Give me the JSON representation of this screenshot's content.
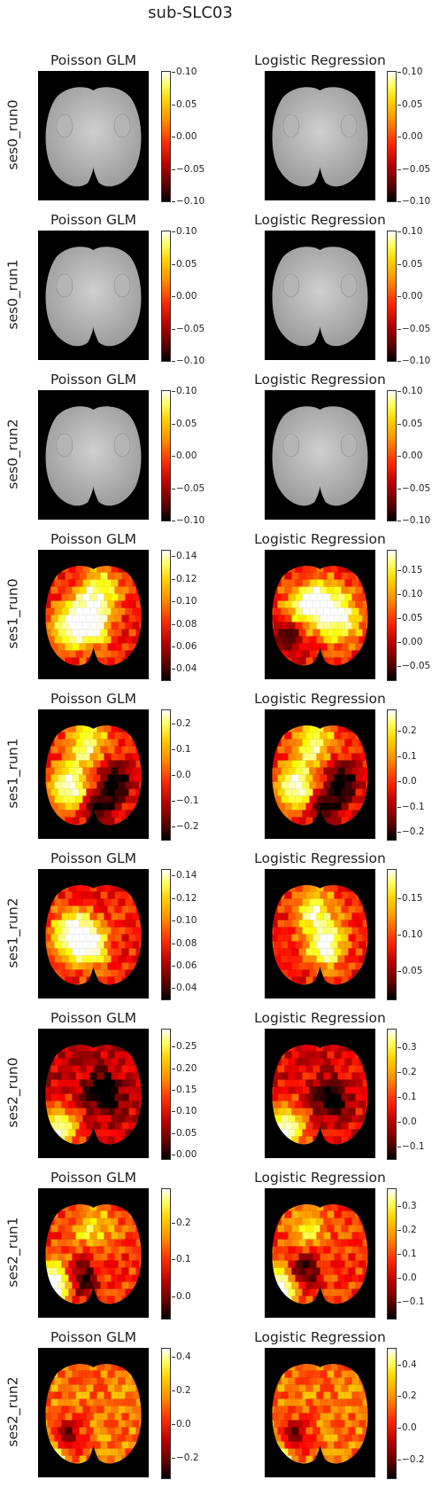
{
  "figure_title": "sub-SLC03",
  "colormap": "hot",
  "chart_data": {
    "type": "heatmap",
    "title": "sub-SLC03",
    "column_titles": [
      "Poisson GLM",
      "Logistic Regression"
    ],
    "rows": [
      {
        "label": "ses0_run0",
        "panels": [
          {
            "title": "Poisson GLM",
            "empty": true,
            "vmin": -0.1,
            "vmax": 0.1,
            "ticks": [
              "0.10",
              "0.05",
              "0.00",
              "−0.05",
              "−0.10"
            ],
            "tick_values": [
              0.1,
              0.05,
              0,
              -0.05,
              -0.1
            ]
          },
          {
            "title": "Logistic Regression",
            "empty": true,
            "vmin": -0.1,
            "vmax": 0.1,
            "ticks": [
              "0.10",
              "0.05",
              "0.00",
              "−0.05",
              "−0.10"
            ],
            "tick_values": [
              0.1,
              0.05,
              0,
              -0.05,
              -0.1
            ]
          }
        ]
      },
      {
        "label": "ses0_run1",
        "panels": [
          {
            "title": "Poisson GLM",
            "empty": true,
            "vmin": -0.1,
            "vmax": 0.1,
            "ticks": [
              "0.10",
              "0.05",
              "0.00",
              "−0.05",
              "−0.10"
            ],
            "tick_values": [
              0.1,
              0.05,
              0,
              -0.05,
              -0.1
            ]
          },
          {
            "title": "Logistic Regression",
            "empty": true,
            "vmin": -0.1,
            "vmax": 0.1,
            "ticks": [
              "0.10",
              "0.05",
              "0.00",
              "−0.05",
              "−0.10"
            ],
            "tick_values": [
              0.1,
              0.05,
              0,
              -0.05,
              -0.1
            ]
          }
        ]
      },
      {
        "label": "ses0_run2",
        "panels": [
          {
            "title": "Poisson GLM",
            "empty": true,
            "vmin": -0.1,
            "vmax": 0.1,
            "ticks": [
              "0.10",
              "0.05",
              "0.00",
              "−0.05",
              "−0.10"
            ],
            "tick_values": [
              0.1,
              0.05,
              0,
              -0.05,
              -0.1
            ]
          },
          {
            "title": "Logistic Regression",
            "empty": true,
            "vmin": -0.1,
            "vmax": 0.1,
            "ticks": [
              "0.10",
              "0.05",
              "0.00",
              "−0.05",
              "−0.10"
            ],
            "tick_values": [
              0.1,
              0.05,
              0,
              -0.05,
              -0.1
            ]
          }
        ]
      },
      {
        "label": "ses1_run0",
        "panels": [
          {
            "title": "Poisson GLM",
            "empty": false,
            "vmin": 0.03,
            "vmax": 0.145,
            "ticks": [
              "0.14",
              "0.12",
              "0.10",
              "0.08",
              "0.06",
              "0.04"
            ],
            "tick_values": [
              0.14,
              0.12,
              0.1,
              0.08,
              0.06,
              0.04
            ],
            "hot_spots": [
              {
                "cx": 0.48,
                "cy": 0.55,
                "v": 1.0
              },
              {
                "cx": 0.3,
                "cy": 0.6,
                "v": 0.8
              },
              {
                "cx": 0.55,
                "cy": 0.3,
                "v": 0.7
              }
            ]
          },
          {
            "title": "Logistic Regression",
            "empty": false,
            "vmin": -0.08,
            "vmax": 0.19,
            "ticks": [
              "0.15",
              "0.10",
              "0.05",
              "0.00",
              "−0.05"
            ],
            "tick_values": [
              0.15,
              0.1,
              0.05,
              0,
              -0.05
            ],
            "hot_spots": [
              {
                "cx": 0.5,
                "cy": 0.4,
                "v": 1.0
              },
              {
                "cx": 0.7,
                "cy": 0.55,
                "v": 0.8
              },
              {
                "cx": 0.3,
                "cy": 0.5,
                "v": 0.6
              }
            ],
            "cold_spots": [
              {
                "cx": 0.22,
                "cy": 0.64
              }
            ]
          }
        ]
      },
      {
        "label": "ses1_run1",
        "panels": [
          {
            "title": "Poisson GLM",
            "empty": false,
            "vmin": -0.25,
            "vmax": 0.25,
            "ticks": [
              "0.2",
              "0.1",
              "0.0",
              "−0.1",
              "−0.2"
            ],
            "tick_values": [
              0.2,
              0.1,
              0,
              -0.1,
              -0.2
            ],
            "hot_spots": [
              {
                "cx": 0.3,
                "cy": 0.6,
                "v": 1.0
              },
              {
                "cx": 0.45,
                "cy": 0.25,
                "v": 0.8
              }
            ],
            "cold_spots": [
              {
                "cx": 0.7,
                "cy": 0.55
              },
              {
                "cx": 0.55,
                "cy": 0.75
              }
            ]
          },
          {
            "title": "Logistic Regression",
            "empty": false,
            "vmin": -0.23,
            "vmax": 0.28,
            "ticks": [
              "0.2",
              "0.1",
              "0.0",
              "−0.1",
              "−0.2"
            ],
            "tick_values": [
              0.2,
              0.1,
              0,
              -0.1,
              -0.2
            ],
            "hot_spots": [
              {
                "cx": 0.3,
                "cy": 0.6,
                "v": 1.0
              },
              {
                "cx": 0.45,
                "cy": 0.25,
                "v": 0.8
              }
            ],
            "cold_spots": [
              {
                "cx": 0.7,
                "cy": 0.55
              },
              {
                "cx": 0.55,
                "cy": 0.75
              }
            ]
          }
        ]
      },
      {
        "label": "ses1_run2",
        "panels": [
          {
            "title": "Poisson GLM",
            "empty": false,
            "vmin": 0.03,
            "vmax": 0.145,
            "ticks": [
              "0.14",
              "0.12",
              "0.10",
              "0.08",
              "0.06",
              "0.04"
            ],
            "tick_values": [
              0.14,
              0.12,
              0.1,
              0.08,
              0.06,
              0.04
            ],
            "hot_spots": [
              {
                "cx": 0.45,
                "cy": 0.58,
                "v": 1.0
              },
              {
                "cx": 0.3,
                "cy": 0.5,
                "v": 0.8
              }
            ]
          },
          {
            "title": "Logistic Regression",
            "empty": false,
            "vmin": 0.01,
            "vmax": 0.19,
            "ticks": [
              "0.15",
              "0.10",
              "0.05"
            ],
            "tick_values": [
              0.15,
              0.1,
              0.05
            ],
            "hot_spots": [
              {
                "cx": 0.55,
                "cy": 0.58,
                "v": 1.0
              },
              {
                "cx": 0.45,
                "cy": 0.3,
                "v": 0.7
              }
            ]
          }
        ]
      },
      {
        "label": "ses2_run0",
        "panels": [
          {
            "title": "Poisson GLM",
            "empty": false,
            "vmin": -0.01,
            "vmax": 0.29,
            "ticks": [
              "0.25",
              "0.20",
              "0.15",
              "0.10",
              "0.05",
              "0.00"
            ],
            "tick_values": [
              0.25,
              0.2,
              0.15,
              0.1,
              0.05,
              0
            ],
            "hot_spots": [
              {
                "cx": 0.2,
                "cy": 0.78,
                "v": 1.0
              }
            ],
            "cold_spots": [
              {
                "cx": 0.6,
                "cy": 0.5
              }
            ],
            "base": 0.3
          },
          {
            "title": "Logistic Regression",
            "empty": false,
            "vmin": -0.15,
            "vmax": 0.37,
            "ticks": [
              "0.3",
              "0.2",
              "0.1",
              "0.0",
              "−0.1"
            ],
            "tick_values": [
              0.3,
              0.2,
              0.1,
              0,
              -0.1
            ],
            "hot_spots": [
              {
                "cx": 0.2,
                "cy": 0.78,
                "v": 1.0
              }
            ],
            "cold_spots": [
              {
                "cx": 0.6,
                "cy": 0.55
              }
            ],
            "base": 0.35
          }
        ]
      },
      {
        "label": "ses2_run1",
        "panels": [
          {
            "title": "Poisson GLM",
            "empty": false,
            "vmin": -0.06,
            "vmax": 0.29,
            "ticks": [
              "0.2",
              "0.1",
              "0.0"
            ],
            "tick_values": [
              0.2,
              0.1,
              0
            ],
            "hot_spots": [
              {
                "cx": 0.15,
                "cy": 0.75,
                "v": 1.0
              },
              {
                "cx": 0.5,
                "cy": 0.3,
                "v": 0.5
              }
            ],
            "cold_spots": [
              {
                "cx": 0.4,
                "cy": 0.7
              }
            ],
            "base": 0.45
          },
          {
            "title": "Logistic Regression",
            "empty": false,
            "vmin": -0.17,
            "vmax": 0.37,
            "ticks": [
              "0.3",
              "0.2",
              "0.1",
              "0.0",
              "−0.1"
            ],
            "tick_values": [
              0.3,
              0.2,
              0.1,
              0,
              -0.1
            ],
            "hot_spots": [
              {
                "cx": 0.15,
                "cy": 0.78,
                "v": 1.0
              },
              {
                "cx": 0.4,
                "cy": 0.3,
                "v": 0.5
              }
            ],
            "cold_spots": [
              {
                "cx": 0.35,
                "cy": 0.65
              }
            ],
            "base": 0.45
          }
        ]
      },
      {
        "label": "ses2_run2",
        "panels": [
          {
            "title": "Poisson GLM",
            "empty": false,
            "vmin": -0.32,
            "vmax": 0.45,
            "ticks": [
              "0.4",
              "0.2",
              "0.0",
              "−0.2"
            ],
            "tick_values": [
              0.4,
              0.2,
              0,
              -0.2
            ],
            "hot_spots": [
              {
                "cx": 0.1,
                "cy": 0.88,
                "v": 1.0
              }
            ],
            "cold_spots": [
              {
                "cx": 0.25,
                "cy": 0.7
              }
            ],
            "base": 0.55
          },
          {
            "title": "Logistic Regression",
            "empty": false,
            "vmin": -0.32,
            "vmax": 0.5,
            "ticks": [
              "0.4",
              "0.2",
              "0.0",
              "−0.2"
            ],
            "tick_values": [
              0.4,
              0.2,
              0,
              -0.2
            ],
            "hot_spots": [
              {
                "cx": 0.1,
                "cy": 0.88,
                "v": 1.0
              }
            ],
            "cold_spots": [
              {
                "cx": 0.25,
                "cy": 0.7
              }
            ],
            "base": 0.55
          }
        ]
      }
    ]
  }
}
